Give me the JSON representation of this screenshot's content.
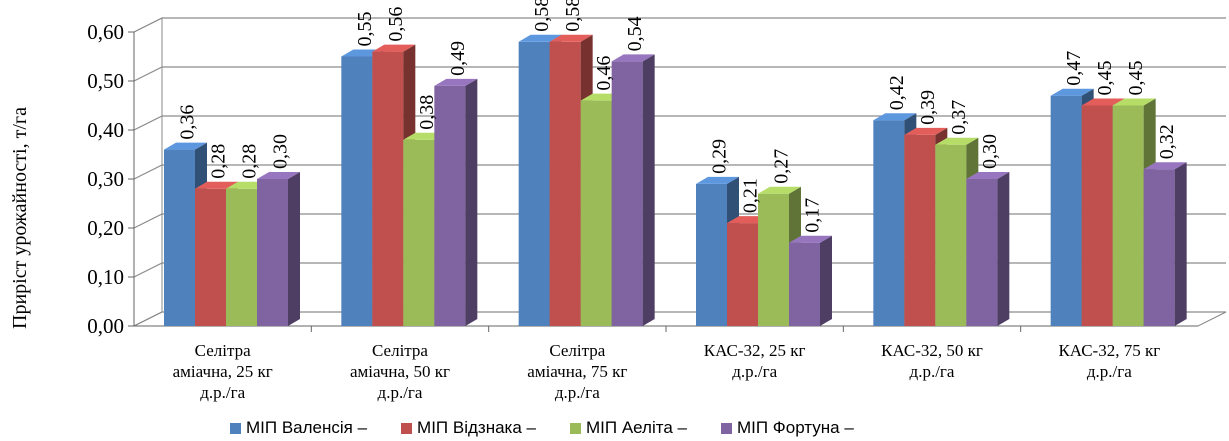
{
  "chart_data": {
    "type": "bar",
    "title": "",
    "xlabel": "",
    "ylabel": "Приріст урожайності, т/га",
    "ylim": [
      0,
      0.6
    ],
    "yticks": [
      "0,00",
      "0,10",
      "0,20",
      "0,30",
      "0,40",
      "0,50",
      "0,60"
    ],
    "grid": true,
    "legend_position": "bottom",
    "categories": [
      [
        "Селітра",
        "аміачна, 25 кг",
        "д.р./га"
      ],
      [
        "Селітра",
        "аміачна, 50 кг",
        "д.р./га"
      ],
      [
        "Селітра",
        "аміачна, 75 кг",
        "д.р./га"
      ],
      [
        "КАС-32, 25 кг",
        "д.р./га"
      ],
      [
        "КАС-32, 50 кг",
        "д.р./га"
      ],
      [
        "КАС-32, 75 кг",
        "д.р./га"
      ]
    ],
    "series": [
      {
        "name": "МІП Валенсія –",
        "color": "#4F81BD",
        "values": [
          0.36,
          0.55,
          0.58,
          0.29,
          0.42,
          0.47
        ],
        "labels": [
          "0,36",
          "0,55",
          "0,58",
          "0,29",
          "0,42",
          "0,47"
        ]
      },
      {
        "name": "МІП Відзнака –",
        "color": "#C0504D",
        "values": [
          0.28,
          0.56,
          0.58,
          0.21,
          0.39,
          0.45
        ],
        "labels": [
          "0,28",
          "0,56",
          "0,58",
          "0,21",
          "0,39",
          "0,45"
        ]
      },
      {
        "name": "МІП Аеліта –",
        "color": "#9BBB59",
        "values": [
          0.28,
          0.38,
          0.46,
          0.27,
          0.37,
          0.45
        ],
        "labels": [
          "0,28",
          "0,38",
          "0,46",
          "0,27",
          "0,37",
          "0,45"
        ]
      },
      {
        "name": "МІП Фортуна –",
        "color": "#8064A2",
        "values": [
          0.3,
          0.49,
          0.54,
          0.17,
          0.3,
          0.32
        ],
        "labels": [
          "0,30",
          "0,49",
          "0,54",
          "0,17",
          "0,30",
          "0,32"
        ]
      }
    ]
  }
}
